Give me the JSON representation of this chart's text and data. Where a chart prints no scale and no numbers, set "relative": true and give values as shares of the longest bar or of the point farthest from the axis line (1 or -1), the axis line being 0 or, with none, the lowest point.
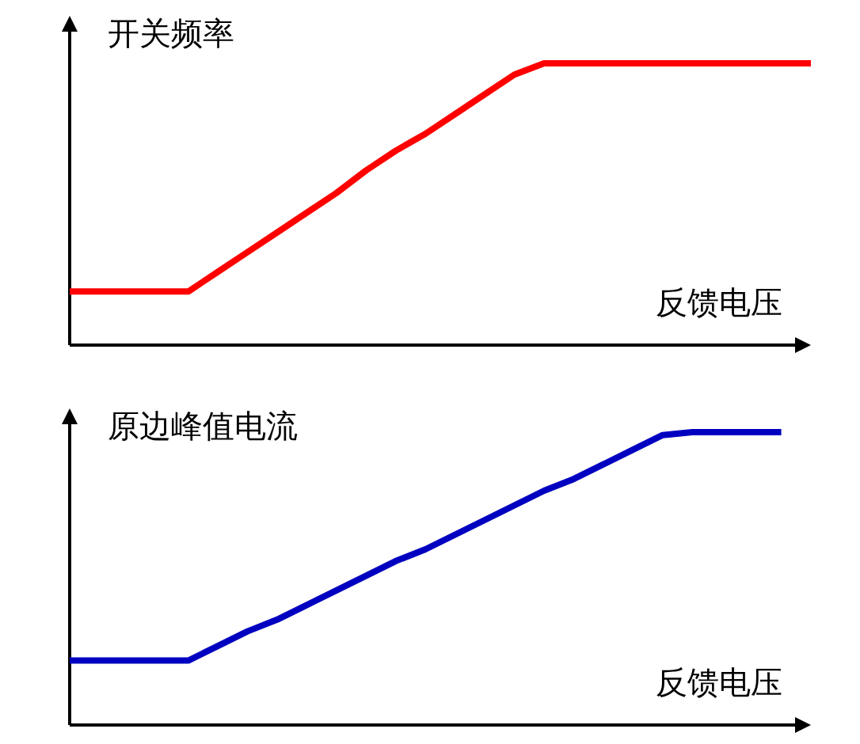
{
  "chart_data": [
    {
      "type": "line",
      "relative": true,
      "ylabel": "开关频率",
      "xlabel": "反馈电压",
      "categories": [
        null,
        null,
        null,
        null,
        null,
        null,
        null,
        null,
        null,
        null,
        null,
        null,
        null,
        null,
        null,
        null,
        null,
        null,
        null,
        null,
        null,
        null,
        null,
        null,
        null,
        null
      ],
      "values": [
        0.19,
        0.19,
        0.19,
        0.19,
        0.19,
        0.26,
        0.33,
        0.4,
        0.47,
        0.54,
        0.62,
        0.69,
        0.75,
        0.82,
        0.89,
        0.96,
        1,
        1,
        1,
        1,
        1,
        1,
        1,
        1,
        1,
        1
      ],
      "color": "#ff0000"
    },
    {
      "type": "line",
      "relative": true,
      "ylabel": "原边峰值电流",
      "xlabel": "反馈电压",
      "categories": [
        null,
        null,
        null,
        null,
        null,
        null,
        null,
        null,
        null,
        null,
        null,
        null,
        null,
        null,
        null,
        null,
        null,
        null,
        null,
        null,
        null,
        null,
        null,
        null,
        null,
        null
      ],
      "values": [
        0.22,
        0.22,
        0.22,
        0.22,
        0.22,
        0.27,
        0.32,
        0.36,
        0.41,
        0.46,
        0.51,
        0.56,
        0.6,
        0.65,
        0.7,
        0.75,
        0.8,
        0.84,
        0.89,
        0.94,
        0.99,
        1,
        1,
        1,
        1,
        null
      ],
      "color": "#0000c0"
    }
  ]
}
